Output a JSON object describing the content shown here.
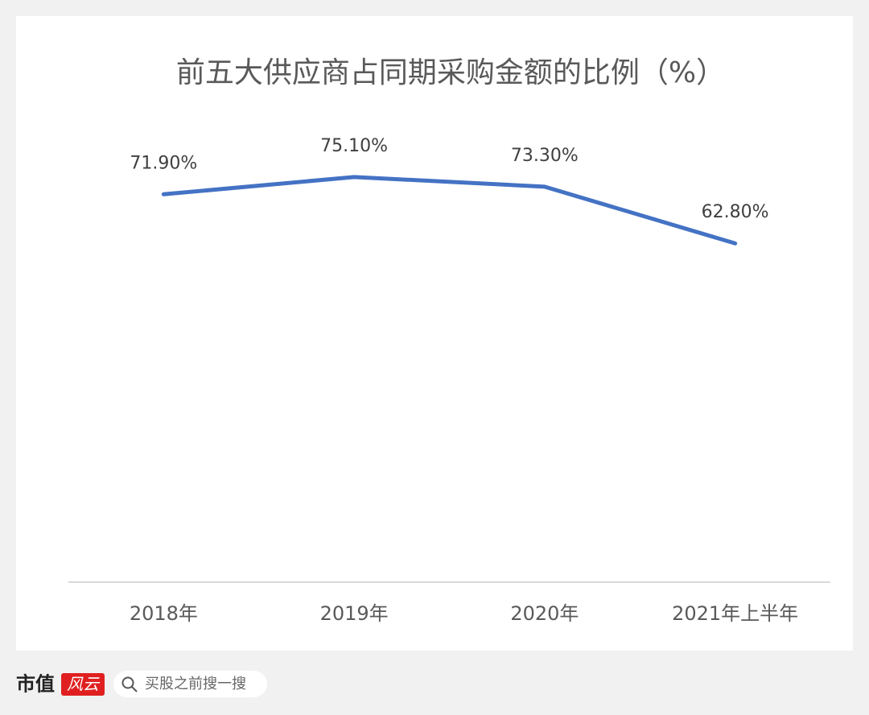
{
  "chart_data": {
    "type": "line",
    "title": "前五大供应商占同期采购金额的比例（%）",
    "categories": [
      "2018年",
      "2019年",
      "2020年",
      "2021年上半年"
    ],
    "series": [
      {
        "name": "比例",
        "color": "#4472c4",
        "values": [
          71.9,
          75.1,
          73.3,
          62.8
        ],
        "value_labels": [
          "71.90%",
          "75.10%",
          "73.30%",
          "62.80%"
        ]
      }
    ],
    "ylim": [
      0,
      80
    ]
  },
  "footer": {
    "brand": "市值",
    "brand_mark": "风云",
    "search": "买股之前搜一搜"
  }
}
